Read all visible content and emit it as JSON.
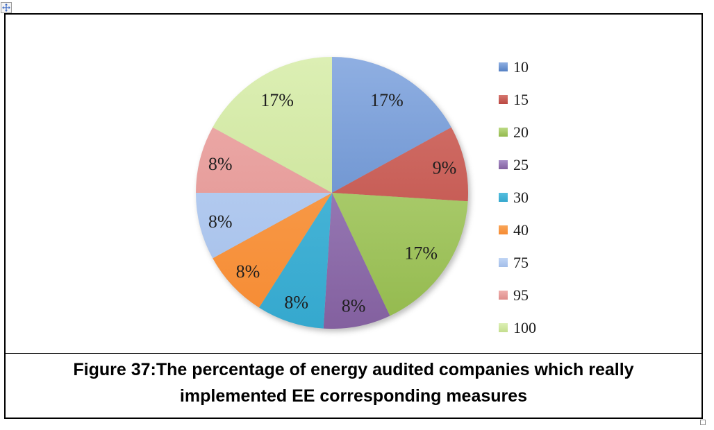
{
  "document": {
    "caption": "Figure 37:The percentage of energy audited companies which really implemented EE corresponding measures"
  },
  "chart_data": {
    "type": "pie",
    "title": "",
    "legend_position": "right",
    "direction": "clockwise",
    "start_angle_deg": 0,
    "label_color": "#1f1f1f",
    "categories": [
      "10",
      "15",
      "20",
      "25",
      "30",
      "40",
      "75",
      "95",
      "100"
    ],
    "values": [
      17,
      9,
      17,
      8,
      8,
      8,
      8,
      8,
      17
    ],
    "slices": [
      {
        "category": "10",
        "pct": 17,
        "label": "17%",
        "color_light": "#8FAFE2",
        "color_dark": "#5580C3"
      },
      {
        "category": "15",
        "pct": 9,
        "label": "9%",
        "color_light": "#D6776F",
        "color_dark": "#BA4741"
      },
      {
        "category": "20",
        "pct": 17,
        "label": "17%",
        "color_light": "#BCDA85",
        "color_dark": "#93B94D"
      },
      {
        "category": "25",
        "pct": 8,
        "label": "8%",
        "color_light": "#A78EC6",
        "color_dark": "#83609F"
      },
      {
        "category": "30",
        "pct": 8,
        "label": "8%",
        "color_light": "#55BEDE",
        "color_dark": "#35A8CE"
      },
      {
        "category": "40",
        "pct": 8,
        "label": "8%",
        "color_light": "#F9A558",
        "color_dark": "#F68B33"
      },
      {
        "category": "75",
        "pct": 8,
        "label": "8%",
        "color_light": "#C0D5F5",
        "color_dark": "#A3BEE9"
      },
      {
        "category": "95",
        "pct": 8,
        "label": "8%",
        "color_light": "#EFAFAD",
        "color_dark": "#DE8D8B"
      },
      {
        "category": "100",
        "pct": 17,
        "label": "17%",
        "color_light": "#DCEFB4",
        "color_dark": "#C4DE8D"
      }
    ]
  }
}
